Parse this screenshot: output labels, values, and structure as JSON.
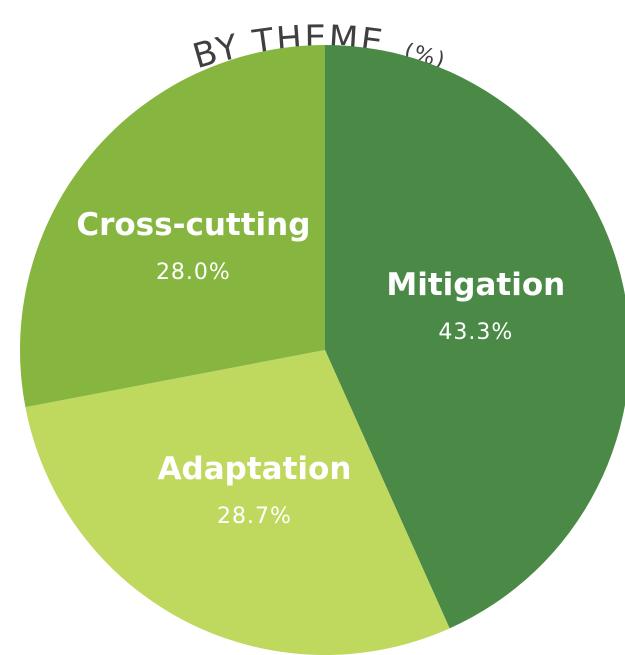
{
  "chart_data": {
    "type": "pie",
    "title": "BY THEME",
    "title_unit": "(%)",
    "slices": [
      {
        "label": "Mitigation",
        "value": 43.3,
        "value_label": "43.3%",
        "color": "#4a8a46"
      },
      {
        "label": "Adaptation",
        "value": 28.7,
        "value_label": "28.7%",
        "color": "#bfd85e"
      },
      {
        "label": "Cross-cutting",
        "value": 28.0,
        "value_label": "28.0%",
        "color": "#86b640"
      }
    ],
    "start_angle_deg": 0,
    "direction": "clockwise"
  }
}
